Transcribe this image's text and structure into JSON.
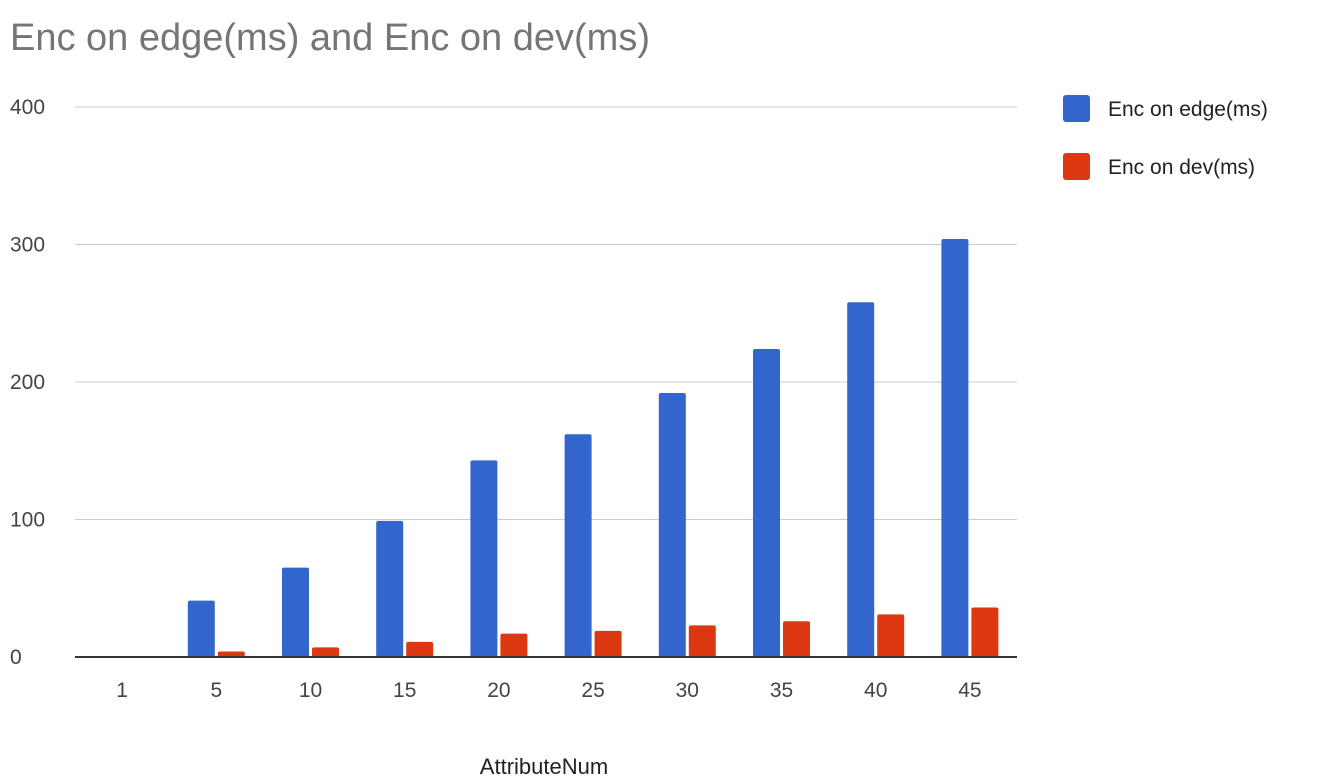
{
  "chart_data": {
    "type": "bar",
    "title": "Enc on edge(ms) and Enc on dev(ms)",
    "xlabel": "AttributeNum",
    "ylabel": "",
    "categories": [
      "1",
      "5",
      "10",
      "15",
      "20",
      "25",
      "30",
      "35",
      "40",
      "45"
    ],
    "series": [
      {
        "name": "Enc on edge(ms)",
        "color": "#3366cc",
        "values": [
          0,
          41,
          65,
          99,
          143,
          162,
          192,
          224,
          258,
          304
        ]
      },
      {
        "name": "Enc on dev(ms)",
        "color": "#dc3912",
        "values": [
          0,
          4,
          7,
          11,
          17,
          19,
          23,
          26,
          31,
          36
        ]
      }
    ],
    "ylim": [
      0,
      400
    ],
    "yticks": [
      0,
      100,
      200,
      300,
      400
    ],
    "grid": true,
    "legend_position": "right"
  }
}
